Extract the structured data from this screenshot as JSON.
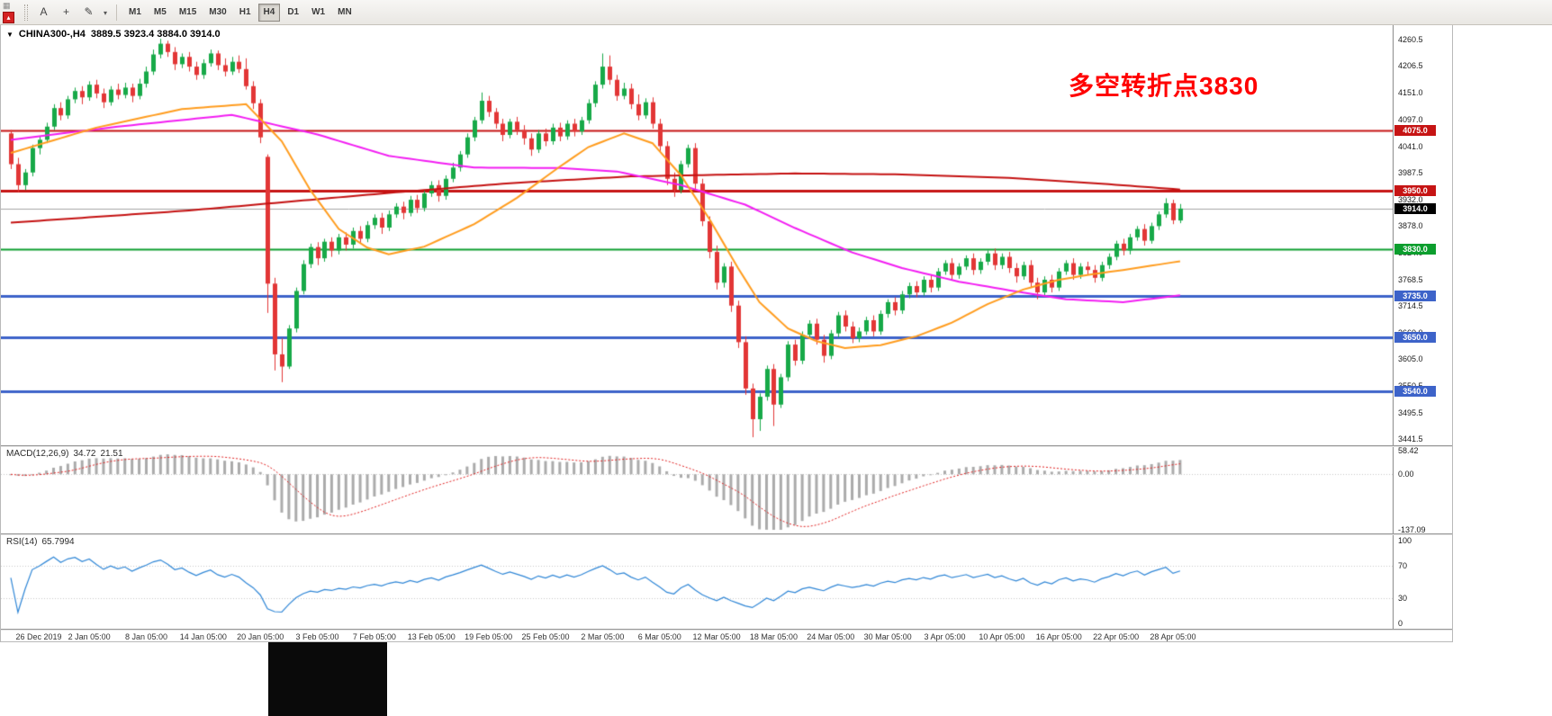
{
  "toolbar": {
    "window_icons": {
      "grid": "▦",
      "chart": "▴"
    },
    "tools": [
      {
        "name": "text-tool-button",
        "label": "A"
      },
      {
        "name": "crosshair-tool-button",
        "label": "+"
      },
      {
        "name": "draw-pencil-button",
        "label": "✎"
      },
      {
        "name": "draw-dropdown-caret",
        "label": "▾",
        "caret": true
      }
    ],
    "timeframes": [
      "M1",
      "M5",
      "M15",
      "M30",
      "H1",
      "H4",
      "D1",
      "W1",
      "MN"
    ],
    "active_timeframe": "H4"
  },
  "chart": {
    "header": {
      "symbol_period": "CHINA300-,H4",
      "ohlc": "3889.5 3923.4 3884.0 3914.0"
    },
    "annotation": {
      "text": "多空转折点3830",
      "color": "#ff0000"
    },
    "price_axis": {
      "labels": [
        "4260.5",
        "4206.5",
        "4151.0",
        "4097.0",
        "4041.0",
        "3987.5",
        "3932.0",
        "3878.0",
        "3824.0",
        "3768.5",
        "3714.5",
        "3660.0",
        "3605.0",
        "3550.5",
        "3495.5",
        "3441.5"
      ]
    },
    "current_price": {
      "label": "3914.0",
      "price": 3914.0
    },
    "hlines": [
      {
        "label": "4075.0",
        "price": 4075.0,
        "color": "#c61414",
        "width": 2
      },
      {
        "label": "3950.0",
        "price": 3950.0,
        "color": "#c61414",
        "width": 3
      },
      {
        "label": "3830.0",
        "price": 3830.0,
        "color": "#0c9e2e",
        "width": 2
      },
      {
        "label": "3735.0",
        "price": 3735.0,
        "color": "#3d63c9",
        "width": 3
      },
      {
        "label": "3650.0",
        "price": 3650.0,
        "color": "#3d63c9",
        "width": 3
      },
      {
        "label": "3540.0",
        "price": 3540.0,
        "color": "#3d63c9",
        "width": 3
      }
    ],
    "colors": {
      "bull": "#17a948",
      "bear": "#e23636",
      "bid_line": "#a6a6a6"
    },
    "ma_lines": [
      {
        "name": "ma-red-slow",
        "color": "#c41111",
        "width": 2,
        "points": [
          [
            0,
            3885
          ],
          [
            25,
            3910
          ],
          [
            53,
            3946
          ],
          [
            70,
            3966
          ],
          [
            87,
            3980
          ],
          [
            110,
            3986
          ],
          [
            125,
            3984
          ],
          [
            140,
            3977
          ],
          [
            152,
            3966
          ],
          [
            164,
            3953
          ]
        ]
      },
      {
        "name": "ma-magenta",
        "color": "#f21df2",
        "width": 2,
        "points": [
          [
            0,
            4055
          ],
          [
            15,
            4082
          ],
          [
            31,
            4106
          ],
          [
            43,
            4066
          ],
          [
            53,
            4022
          ],
          [
            65,
            3998
          ],
          [
            77,
            3997
          ],
          [
            85,
            3990
          ],
          [
            94,
            3962
          ],
          [
            103,
            3922
          ],
          [
            110,
            3874
          ],
          [
            118,
            3824
          ],
          [
            125,
            3792
          ],
          [
            133,
            3764
          ],
          [
            141,
            3744
          ],
          [
            148,
            3728
          ],
          [
            156,
            3722
          ],
          [
            164,
            3736
          ]
        ]
      },
      {
        "name": "ma-orange",
        "color": "#ff9c1e",
        "width": 2,
        "points": [
          [
            0,
            4028
          ],
          [
            12,
            4080
          ],
          [
            24,
            4118
          ],
          [
            33,
            4128
          ],
          [
            38,
            4052
          ],
          [
            42,
            3952
          ],
          [
            46,
            3872
          ],
          [
            50,
            3834
          ],
          [
            53,
            3820
          ],
          [
            58,
            3836
          ],
          [
            65,
            3882
          ],
          [
            71,
            3936
          ],
          [
            77,
            4000
          ],
          [
            81,
            4040
          ],
          [
            86,
            4068
          ],
          [
            90,
            4048
          ],
          [
            94,
            3982
          ],
          [
            98,
            3892
          ],
          [
            102,
            3792
          ],
          [
            105,
            3722
          ],
          [
            109,
            3668
          ],
          [
            113,
            3642
          ],
          [
            117,
            3628
          ],
          [
            122,
            3634
          ],
          [
            127,
            3652
          ],
          [
            132,
            3680
          ],
          [
            137,
            3718
          ],
          [
            142,
            3748
          ],
          [
            147,
            3768
          ],
          [
            152,
            3780
          ],
          [
            157,
            3790
          ],
          [
            164,
            3806
          ]
        ]
      }
    ],
    "candles": [
      [
        4068,
        4075,
        3995,
        4005
      ],
      [
        4005,
        4018,
        3948,
        3962
      ],
      [
        3962,
        3995,
        3952,
        3988
      ],
      [
        3988,
        4045,
        3980,
        4038
      ],
      [
        4038,
        4062,
        4025,
        4055
      ],
      [
        4055,
        4090,
        4048,
        4082
      ],
      [
        4082,
        4128,
        4075,
        4120
      ],
      [
        4120,
        4132,
        4095,
        4105
      ],
      [
        4105,
        4145,
        4098,
        4138
      ],
      [
        4138,
        4162,
        4130,
        4155
      ],
      [
        4155,
        4165,
        4128,
        4142
      ],
      [
        4142,
        4175,
        4135,
        4168
      ],
      [
        4168,
        4178,
        4140,
        4150
      ],
      [
        4150,
        4160,
        4120,
        4132
      ],
      [
        4132,
        4165,
        4125,
        4158
      ],
      [
        4158,
        4170,
        4138,
        4147
      ],
      [
        4147,
        4172,
        4140,
        4162
      ],
      [
        4162,
        4170,
        4132,
        4145
      ],
      [
        4145,
        4180,
        4138,
        4170
      ],
      [
        4170,
        4205,
        4162,
        4195
      ],
      [
        4195,
        4240,
        4188,
        4230
      ],
      [
        4230,
        4262,
        4222,
        4252
      ],
      [
        4252,
        4258,
        4225,
        4235
      ],
      [
        4235,
        4245,
        4198,
        4210
      ],
      [
        4210,
        4232,
        4202,
        4225
      ],
      [
        4225,
        4235,
        4195,
        4205
      ],
      [
        4205,
        4215,
        4178,
        4188
      ],
      [
        4188,
        4220,
        4180,
        4212
      ],
      [
        4212,
        4240,
        4205,
        4232
      ],
      [
        4232,
        4238,
        4198,
        4208
      ],
      [
        4208,
        4222,
        4185,
        4195
      ],
      [
        4195,
        4225,
        4188,
        4215
      ],
      [
        4215,
        4228,
        4192,
        4200
      ],
      [
        4200,
        4222,
        4158,
        4165
      ],
      [
        4165,
        4175,
        4118,
        4130
      ],
      [
        4130,
        4138,
        4048,
        4060
      ],
      [
        4020,
        4025,
        3700,
        3760
      ],
      [
        3760,
        3772,
        3582,
        3615
      ],
      [
        3615,
        3648,
        3558,
        3590
      ],
      [
        3590,
        3675,
        3585,
        3668
      ],
      [
        3668,
        3752,
        3660,
        3745
      ],
      [
        3745,
        3808,
        3738,
        3800
      ],
      [
        3800,
        3842,
        3792,
        3835
      ],
      [
        3835,
        3845,
        3798,
        3812
      ],
      [
        3812,
        3852,
        3805,
        3846
      ],
      [
        3846,
        3855,
        3815,
        3828
      ],
      [
        3828,
        3862,
        3820,
        3855
      ],
      [
        3855,
        3865,
        3828,
        3840
      ],
      [
        3840,
        3875,
        3832,
        3868
      ],
      [
        3868,
        3878,
        3842,
        3852
      ],
      [
        3852,
        3888,
        3845,
        3880
      ],
      [
        3880,
        3902,
        3872,
        3895
      ],
      [
        3895,
        3905,
        3862,
        3875
      ],
      [
        3875,
        3910,
        3868,
        3902
      ],
      [
        3902,
        3925,
        3895,
        3918
      ],
      [
        3918,
        3928,
        3892,
        3905
      ],
      [
        3905,
        3940,
        3898,
        3932
      ],
      [
        3932,
        3942,
        3905,
        3915
      ],
      [
        3915,
        3952,
        3908,
        3945
      ],
      [
        3945,
        3970,
        3938,
        3962
      ],
      [
        3962,
        3972,
        3928,
        3940
      ],
      [
        3940,
        3982,
        3932,
        3975
      ],
      [
        3975,
        4008,
        3968,
        3998
      ],
      [
        3998,
        4032,
        3990,
        4025
      ],
      [
        4025,
        4068,
        4018,
        4060
      ],
      [
        4060,
        4102,
        4052,
        4095
      ],
      [
        4095,
        4152,
        4088,
        4135
      ],
      [
        4135,
        4145,
        4102,
        4112
      ],
      [
        4112,
        4120,
        4078,
        4088
      ],
      [
        4088,
        4098,
        4052,
        4065
      ],
      [
        4065,
        4098,
        4058,
        4092
      ],
      [
        4092,
        4102,
        4065,
        4075
      ],
      [
        4075,
        4085,
        4045,
        4058
      ],
      [
        4058,
        4068,
        4022,
        4035
      ],
      [
        4035,
        4075,
        4028,
        4068
      ],
      [
        4068,
        4078,
        4042,
        4052
      ],
      [
        4052,
        4088,
        4045,
        4080
      ],
      [
        4080,
        4090,
        4052,
        4062
      ],
      [
        4062,
        4095,
        4055,
        4088
      ],
      [
        4088,
        4098,
        4062,
        4072
      ],
      [
        4072,
        4102,
        4065,
        4095
      ],
      [
        4095,
        4138,
        4088,
        4130
      ],
      [
        4130,
        4175,
        4122,
        4168
      ],
      [
        4168,
        4232,
        4160,
        4205
      ],
      [
        4205,
        4228,
        4168,
        4178
      ],
      [
        4178,
        4188,
        4135,
        4145
      ],
      [
        4145,
        4172,
        4138,
        4160
      ],
      [
        4160,
        4170,
        4118,
        4128
      ],
      [
        4128,
        4148,
        4095,
        4105
      ],
      [
        4105,
        4140,
        4098,
        4132
      ],
      [
        4132,
        4142,
        4078,
        4088
      ],
      [
        4088,
        4098,
        4032,
        4042
      ],
      [
        4042,
        4052,
        3962,
        3975
      ],
      [
        3975,
        3988,
        3938,
        3952
      ],
      [
        3952,
        4012,
        3945,
        4005
      ],
      [
        4005,
        4045,
        3998,
        4038
      ],
      [
        4038,
        4048,
        3952,
        3965
      ],
      [
        3965,
        3975,
        3878,
        3888
      ],
      [
        3888,
        3898,
        3812,
        3825
      ],
      [
        3825,
        3838,
        3748,
        3762
      ],
      [
        3762,
        3802,
        3752,
        3795
      ],
      [
        3795,
        3805,
        3702,
        3715
      ],
      [
        3715,
        3725,
        3628,
        3640
      ],
      [
        3640,
        3652,
        3532,
        3545
      ],
      [
        3545,
        3555,
        3445,
        3482
      ],
      [
        3482,
        3535,
        3458,
        3528
      ],
      [
        3528,
        3592,
        3520,
        3585
      ],
      [
        3585,
        3595,
        3468,
        3512
      ],
      [
        3512,
        3575,
        3505,
        3568
      ],
      [
        3568,
        3642,
        3560,
        3635
      ],
      [
        3635,
        3645,
        3592,
        3602
      ],
      [
        3602,
        3662,
        3595,
        3655
      ],
      [
        3655,
        3685,
        3648,
        3678
      ],
      [
        3678,
        3688,
        3635,
        3645
      ],
      [
        3645,
        3655,
        3598,
        3612
      ],
      [
        3612,
        3665,
        3605,
        3658
      ],
      [
        3658,
        3702,
        3650,
        3695
      ],
      [
        3695,
        3705,
        3662,
        3672
      ],
      [
        3672,
        3682,
        3638,
        3648
      ],
      [
        3648,
        3670,
        3640,
        3662
      ],
      [
        3662,
        3692,
        3655,
        3685
      ],
      [
        3685,
        3695,
        3652,
        3662
      ],
      [
        3662,
        3705,
        3655,
        3698
      ],
      [
        3698,
        3728,
        3690,
        3722
      ],
      [
        3722,
        3732,
        3695,
        3705
      ],
      [
        3705,
        3745,
        3698,
        3738
      ],
      [
        3738,
        3762,
        3730,
        3755
      ],
      [
        3755,
        3765,
        3732,
        3742
      ],
      [
        3742,
        3775,
        3735,
        3768
      ],
      [
        3768,
        3778,
        3742,
        3752
      ],
      [
        3752,
        3792,
        3745,
        3785
      ],
      [
        3785,
        3808,
        3778,
        3802
      ],
      [
        3802,
        3812,
        3768,
        3778
      ],
      [
        3778,
        3802,
        3770,
        3795
      ],
      [
        3795,
        3818,
        3788,
        3812
      ],
      [
        3812,
        3822,
        3778,
        3788
      ],
      [
        3788,
        3812,
        3780,
        3805
      ],
      [
        3805,
        3828,
        3798,
        3822
      ],
      [
        3822,
        3832,
        3788,
        3798
      ],
      [
        3798,
        3822,
        3790,
        3815
      ],
      [
        3815,
        3825,
        3782,
        3792
      ],
      [
        3792,
        3802,
        3762,
        3775
      ],
      [
        3775,
        3805,
        3768,
        3798
      ],
      [
        3798,
        3808,
        3752,
        3762
      ],
      [
        3762,
        3772,
        3728,
        3742
      ],
      [
        3742,
        3775,
        3735,
        3768
      ],
      [
        3768,
        3778,
        3742,
        3752
      ],
      [
        3752,
        3792,
        3745,
        3785
      ],
      [
        3785,
        3808,
        3778,
        3802
      ],
      [
        3802,
        3812,
        3768,
        3778
      ],
      [
        3778,
        3802,
        3770,
        3795
      ],
      [
        3795,
        3805,
        3778,
        3788
      ],
      [
        3788,
        3798,
        3762,
        3772
      ],
      [
        3772,
        3805,
        3765,
        3798
      ],
      [
        3798,
        3822,
        3790,
        3815
      ],
      [
        3815,
        3848,
        3808,
        3842
      ],
      [
        3842,
        3852,
        3818,
        3828
      ],
      [
        3828,
        3862,
        3820,
        3855
      ],
      [
        3855,
        3878,
        3848,
        3872
      ],
      [
        3872,
        3882,
        3838,
        3848
      ],
      [
        3848,
        3885,
        3842,
        3878
      ],
      [
        3878,
        3908,
        3870,
        3902
      ],
      [
        3902,
        3935,
        3895,
        3925
      ],
      [
        3925,
        3932,
        3882,
        3890
      ],
      [
        3889.5,
        3923.4,
        3884,
        3914
      ]
    ],
    "time_axis": {
      "labels": [
        "26 Dec 2019",
        "2 Jan 05:00",
        "8 Jan 05:00",
        "14 Jan 05:00",
        "20 Jan 05:00",
        "3 Feb 05:00",
        "7 Feb 05:00",
        "13 Feb 05:00",
        "19 Feb 05:00",
        "25 Feb 05:00",
        "2 Mar 05:00",
        "6 Mar 05:00",
        "12 Mar 05:00",
        "18 Mar 05:00",
        "24 Mar 05:00",
        "30 Mar 05:00",
        "3 Apr 05:00",
        "10 Apr 05:00",
        "16 Apr 05:00",
        "22 Apr 05:00",
        "28 Apr 05:00"
      ]
    }
  },
  "macd": {
    "label": "MACD(12,26,9)",
    "value_main": "34.72",
    "value_signal": "21.51",
    "axis": [
      "58.42",
      "0.00",
      "-137.09"
    ],
    "histogram_color": "#ababab",
    "signal_color": "#e02020"
  },
  "rsi": {
    "label": "RSI(14)",
    "value": "65.7994",
    "axis": [
      "100",
      "70",
      "30",
      "0"
    ],
    "levels": [
      70,
      30
    ],
    "line_color": "#2f86d6"
  }
}
